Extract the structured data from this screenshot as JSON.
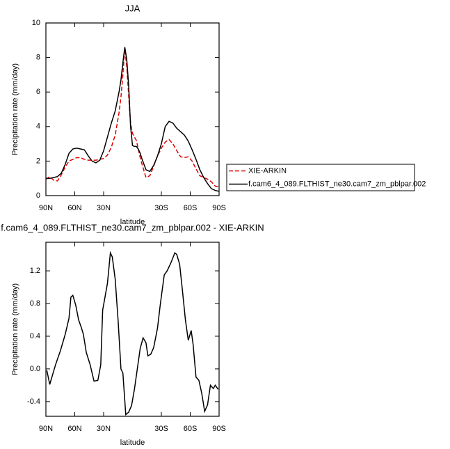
{
  "chart_data": [
    {
      "type": "line",
      "title": "JJA",
      "x_label": "latitude",
      "y_label": "Precipitation rate (mm/day)",
      "x": [
        90,
        86,
        82,
        78,
        74,
        70,
        66,
        62,
        58,
        54,
        50,
        46,
        42,
        38,
        34,
        30,
        26,
        22,
        18,
        14,
        12,
        10,
        8,
        6,
        4,
        2,
        0,
        -2,
        -4,
        -6,
        -8,
        -10,
        -14,
        -18,
        -22,
        -26,
        -30,
        -34,
        -38,
        -42,
        -46,
        -50,
        -54,
        -58,
        -62,
        -66,
        -70,
        -74,
        -78,
        -82,
        -86,
        -90
      ],
      "series": [
        {
          "name": "XIE-ARKIN",
          "color": "#e00000",
          "dash": true,
          "values": [
            0.95,
            1.1,
            0.9,
            0.85,
            1.2,
            1.65,
            2.0,
            2.1,
            2.2,
            2.2,
            2.1,
            2.05,
            2.05,
            2.05,
            2.1,
            2.15,
            2.35,
            2.8,
            3.5,
            4.8,
            5.7,
            7.0,
            8.5,
            7.5,
            5.8,
            4.2,
            3.6,
            3.4,
            3.2,
            2.7,
            2.2,
            1.8,
            1.05,
            1.15,
            1.7,
            2.3,
            2.75,
            3.1,
            3.25,
            3.0,
            2.6,
            2.25,
            2.2,
            2.25,
            2.0,
            1.55,
            1.15,
            1.05,
            0.95,
            0.8,
            0.55,
            0.5
          ]
        },
        {
          "name": "f.cam6_4_089.FLTHIST_ne30.cam7_zm_pblpar.002",
          "color": "#000000",
          "dash": false,
          "values": [
            1.0,
            1.0,
            1.05,
            1.1,
            1.3,
            1.8,
            2.45,
            2.7,
            2.75,
            2.7,
            2.65,
            2.3,
            2.0,
            1.9,
            2.05,
            2.6,
            3.4,
            4.2,
            4.9,
            6.0,
            6.7,
            7.7,
            8.6,
            7.9,
            6.4,
            4.0,
            2.9,
            2.85,
            2.85,
            2.7,
            2.45,
            2.1,
            1.5,
            1.4,
            1.75,
            2.3,
            3.0,
            4.0,
            4.3,
            4.2,
            3.9,
            3.7,
            3.5,
            3.15,
            2.65,
            2.1,
            1.5,
            1.05,
            0.7,
            0.4,
            0.3,
            0.25
          ]
        }
      ],
      "xlim": [
        90,
        -90
      ],
      "xticks": [
        {
          "value": 90,
          "label": "90N"
        },
        {
          "value": 60,
          "label": "60N"
        },
        {
          "value": 30,
          "label": "30N"
        },
        {
          "value": -30,
          "label": "30S"
        },
        {
          "value": -60,
          "label": "60S"
        },
        {
          "value": -90,
          "label": "90S"
        }
      ],
      "ylim": [
        0,
        10
      ],
      "yticks": [
        0,
        2,
        4,
        6,
        8,
        10
      ],
      "legend": "right"
    },
    {
      "type": "line",
      "title": "f.cam6_4_089.FLTHIST_ne30.cam7_zm_pblpar.002 - XIE-ARKIN",
      "x_label": "latitude",
      "y_label": "Precipitation rate (mm/day)",
      "x": [
        89,
        86,
        80,
        75,
        70,
        66,
        64,
        62,
        59,
        56,
        53,
        51,
        48,
        44,
        40,
        36,
        33,
        31,
        29,
        26,
        23,
        21,
        18,
        15,
        12,
        10,
        7,
        4,
        1,
        -2,
        -5,
        -8,
        -11,
        -14,
        -16,
        -19,
        -22,
        -26,
        -29,
        -33,
        -36,
        -40,
        -44,
        -46,
        -49,
        -52,
        -55,
        -58,
        -61,
        -63,
        -66,
        -69,
        -72,
        -75,
        -78,
        -81,
        -84,
        -86,
        -89
      ],
      "values": [
        -0.02,
        -0.19,
        0.05,
        0.22,
        0.42,
        0.62,
        0.88,
        0.9,
        0.78,
        0.6,
        0.5,
        0.42,
        0.2,
        0.05,
        -0.15,
        -0.14,
        0.05,
        0.72,
        0.85,
        1.05,
        1.42,
        1.37,
        1.1,
        0.6,
        0.0,
        -0.05,
        -0.56,
        -0.53,
        -0.45,
        -0.25,
        0.0,
        0.25,
        0.38,
        0.32,
        0.16,
        0.18,
        0.26,
        0.5,
        0.8,
        1.15,
        1.2,
        1.3,
        1.42,
        1.4,
        1.28,
        0.95,
        0.6,
        0.35,
        0.47,
        0.3,
        -0.1,
        -0.14,
        -0.3,
        -0.52,
        -0.44,
        -0.2,
        -0.24,
        -0.2,
        -0.25
      ],
      "color": "#000000",
      "xlim": [
        90,
        -90
      ],
      "xticks": [
        {
          "value": 90,
          "label": "90N"
        },
        {
          "value": 60,
          "label": "60N"
        },
        {
          "value": 30,
          "label": "30N"
        },
        {
          "value": -30,
          "label": "30S"
        },
        {
          "value": -60,
          "label": "60S"
        },
        {
          "value": -90,
          "label": "90S"
        }
      ],
      "ylim": [
        -0.58,
        1.55
      ],
      "yticks": [
        -0.4,
        {
          "value": 0,
          "label": "0.0"
        },
        0.4,
        0.8,
        1.2
      ]
    }
  ]
}
